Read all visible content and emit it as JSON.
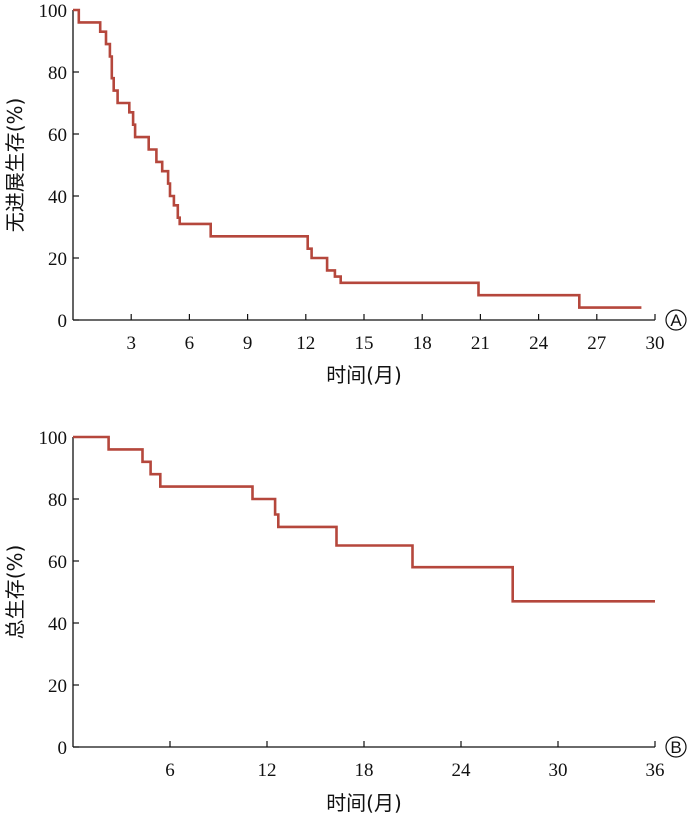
{
  "chart_data": [
    {
      "type": "line",
      "panel_label": "A",
      "xlabel": "时间(月)",
      "ylabel": "无进展生存(%)",
      "xlim": [
        0,
        30
      ],
      "ylim": [
        0,
        100
      ],
      "xticks": [
        3,
        6,
        9,
        12,
        15,
        18,
        21,
        24,
        27,
        30
      ],
      "yticks": [
        0,
        20,
        40,
        60,
        80,
        100
      ],
      "line_color": "#b5473c",
      "series": [
        {
          "x": [
            0,
            0.3,
            0.3,
            1.4,
            1.4,
            1.7,
            1.7,
            1.9,
            1.9,
            2.0,
            2.0,
            2.1,
            2.1,
            2.3,
            2.3,
            2.9,
            2.9,
            3.1,
            3.1,
            3.2,
            3.2,
            3.9,
            3.9,
            4.3,
            4.3,
            4.6,
            4.6,
            4.9,
            4.9,
            5.0,
            5.0,
            5.2,
            5.2,
            5.4,
            5.4,
            5.5,
            5.5,
            7.1,
            7.1,
            12.1,
            12.1,
            12.3,
            12.3,
            13.1,
            13.1,
            13.5,
            13.5,
            13.8,
            13.8,
            20.9,
            20.9,
            26.1,
            26.1,
            29.3
          ],
          "y": [
            100,
            100,
            96,
            96,
            93,
            93,
            89,
            89,
            85,
            85,
            78,
            78,
            74,
            74,
            70,
            70,
            67,
            67,
            63,
            63,
            59,
            59,
            55,
            55,
            51,
            51,
            48,
            48,
            44,
            44,
            40,
            40,
            37,
            37,
            33,
            33,
            31,
            31,
            27,
            27,
            23,
            23,
            20,
            20,
            16,
            16,
            14,
            14,
            12,
            12,
            8,
            8,
            4,
            4
          ]
        }
      ]
    },
    {
      "type": "line",
      "panel_label": "B",
      "xlabel": "时间(月)",
      "ylabel": "总生存(%)",
      "xlim": [
        0,
        36
      ],
      "ylim": [
        0,
        100
      ],
      "xticks": [
        6,
        12,
        18,
        24,
        30,
        36
      ],
      "yticks": [
        0,
        20,
        40,
        60,
        80,
        100
      ],
      "line_color": "#b5473c",
      "series": [
        {
          "x": [
            0,
            2.2,
            2.2,
            4.3,
            4.3,
            4.8,
            4.8,
            5.4,
            5.4,
            11.1,
            11.1,
            12.5,
            12.5,
            12.7,
            12.7,
            16.3,
            16.3,
            21.0,
            21.0,
            27.2,
            27.2,
            36.0
          ],
          "y": [
            100,
            100,
            96,
            96,
            92,
            92,
            88,
            88,
            84,
            84,
            80,
            80,
            75,
            75,
            71,
            71,
            65,
            65,
            58,
            58,
            47,
            47
          ]
        }
      ]
    }
  ]
}
